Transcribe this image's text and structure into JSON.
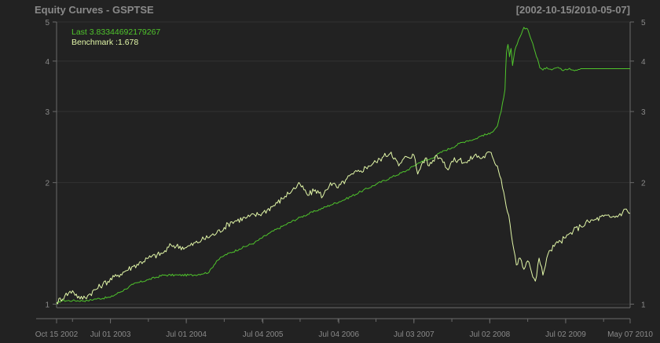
{
  "chart_data": {
    "type": "line",
    "title": "Equity Curves - GSPTSE",
    "date_range": "[2002-10-15/2010-05-07]",
    "y_scale": "log",
    "ylim": [
      0.98,
      5.0
    ],
    "y_ticks": [
      1,
      2,
      3,
      4,
      5
    ],
    "y_tick_labels": [
      "1",
      "2",
      "3",
      "4",
      "5"
    ],
    "xlim": [
      2002.79,
      2010.35
    ],
    "x_ticks": [
      {
        "label": "Oct 15 2002",
        "x": 2002.79
      },
      {
        "label": "Jul 01 2003",
        "x": 2003.5
      },
      {
        "label": "Jul 01 2004",
        "x": 2004.5
      },
      {
        "label": "Jul 04 2005",
        "x": 2005.51
      },
      {
        "label": "Jul 04 2006",
        "x": 2006.51
      },
      {
        "label": "Jul 03 2007",
        "x": 2007.5
      },
      {
        "label": "Jul 02 2008",
        "x": 2008.5
      },
      {
        "label": "Jul 02 2009",
        "x": 2009.5
      },
      {
        "label": "May 07 2010",
        "x": 2010.35
      }
    ],
    "legend": [
      {
        "label": "Last 3.83344692179267",
        "color": "#4fc42c"
      },
      {
        "label": "Benchmark :1.678",
        "color": "#e2f7a8"
      }
    ],
    "series": [
      {
        "name": "Last 3.83344692179267",
        "color": "#4fc42c",
        "x": [
          2002.79,
          2002.85,
          2003.0,
          2003.2,
          2003.3,
          2003.5,
          2003.7,
          2003.8,
          2004.0,
          2004.2,
          2004.4,
          2004.6,
          2004.8,
          2004.9,
          2005.0,
          2005.2,
          2005.4,
          2005.6,
          2005.8,
          2006.0,
          2006.2,
          2006.4,
          2006.6,
          2006.8,
          2007.0,
          2007.2,
          2007.4,
          2007.5,
          2007.6,
          2007.7,
          2007.8,
          2007.9,
          2008.0,
          2008.1,
          2008.2,
          2008.3,
          2008.4,
          2008.5,
          2008.6,
          2008.65,
          2008.7,
          2008.72,
          2008.74,
          2008.76,
          2008.78,
          2008.8,
          2008.83,
          2008.86,
          2008.9,
          2008.95,
          2009.0,
          2009.05,
          2009.1,
          2009.13,
          2009.16,
          2009.2,
          2009.25,
          2009.3,
          2009.35,
          2009.4,
          2009.45,
          2009.5,
          2009.55,
          2009.6,
          2009.7,
          2009.8,
          2009.9,
          2010.0,
          2010.1,
          2010.2,
          2010.35
        ],
        "y": [
          1.0,
          1.02,
          1.02,
          1.02,
          1.03,
          1.04,
          1.09,
          1.12,
          1.15,
          1.18,
          1.18,
          1.18,
          1.2,
          1.28,
          1.32,
          1.37,
          1.42,
          1.5,
          1.57,
          1.64,
          1.7,
          1.76,
          1.82,
          1.9,
          1.98,
          2.06,
          2.14,
          2.2,
          2.26,
          2.28,
          2.34,
          2.4,
          2.44,
          2.5,
          2.54,
          2.56,
          2.62,
          2.64,
          2.76,
          3.0,
          3.4,
          4.2,
          4.4,
          4.1,
          4.3,
          3.9,
          4.25,
          4.4,
          4.6,
          4.85,
          4.8,
          4.5,
          4.2,
          4.05,
          3.85,
          3.8,
          3.86,
          3.82,
          3.84,
          3.86,
          3.8,
          3.82,
          3.84,
          3.8,
          3.83,
          3.83,
          3.83,
          3.83,
          3.83,
          3.83,
          3.83
        ]
      },
      {
        "name": "Benchmark :1.678",
        "color": "#e2f7a8",
        "x": [
          2002.79,
          2002.9,
          2003.0,
          2003.1,
          2003.2,
          2003.4,
          2003.6,
          2003.8,
          2004.0,
          2004.2,
          2004.3,
          2004.5,
          2004.7,
          2004.9,
          2005.1,
          2005.3,
          2005.5,
          2005.7,
          2005.8,
          2005.9,
          2006.0,
          2006.1,
          2006.2,
          2006.3,
          2006.4,
          2006.5,
          2006.6,
          2006.7,
          2006.8,
          2006.9,
          2007.0,
          2007.1,
          2007.2,
          2007.3,
          2007.4,
          2007.5,
          2007.55,
          2007.6,
          2007.65,
          2007.7,
          2007.8,
          2007.85,
          2007.9,
          2007.95,
          2008.0,
          2008.1,
          2008.2,
          2008.3,
          2008.4,
          2008.5,
          2008.55,
          2008.6,
          2008.65,
          2008.7,
          2008.75,
          2008.8,
          2008.85,
          2008.9,
          2008.95,
          2009.0,
          2009.05,
          2009.1,
          2009.15,
          2009.2,
          2009.25,
          2009.3,
          2009.4,
          2009.5,
          2009.6,
          2009.7,
          2009.8,
          2009.9,
          2010.0,
          2010.1,
          2010.2,
          2010.3,
          2010.35
        ],
        "y": [
          1.01,
          1.05,
          1.08,
          1.03,
          1.05,
          1.12,
          1.18,
          1.24,
          1.3,
          1.34,
          1.4,
          1.38,
          1.44,
          1.5,
          1.6,
          1.64,
          1.68,
          1.78,
          1.85,
          1.92,
          1.98,
          1.86,
          1.92,
          1.85,
          2.0,
          1.94,
          2.03,
          2.1,
          2.14,
          2.2,
          2.25,
          2.32,
          2.38,
          2.2,
          2.32,
          2.34,
          2.1,
          2.22,
          2.3,
          2.2,
          2.34,
          2.3,
          2.25,
          2.15,
          2.26,
          2.28,
          2.24,
          2.34,
          2.3,
          2.38,
          2.28,
          2.2,
          2.04,
          1.82,
          1.66,
          1.42,
          1.25,
          1.3,
          1.22,
          1.28,
          1.2,
          1.14,
          1.3,
          1.18,
          1.3,
          1.36,
          1.42,
          1.46,
          1.52,
          1.56,
          1.6,
          1.62,
          1.65,
          1.64,
          1.66,
          1.72,
          1.68
        ]
      }
    ]
  }
}
